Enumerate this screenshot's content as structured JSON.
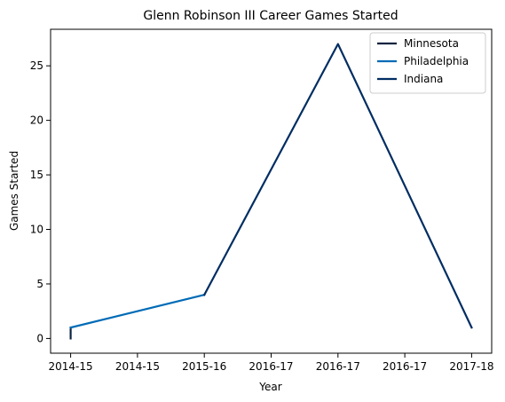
{
  "chart_data": {
    "type": "line",
    "title": "Glenn Robinson III Career Games Started",
    "xlabel": "Year",
    "ylabel": "Games Started",
    "x_tick_labels": [
      "2014-15",
      "2014-15",
      "2015-16",
      "2016-17",
      "2016-17",
      "2016-17",
      "2017-18"
    ],
    "ylim": [
      -1.35,
      28.35
    ],
    "y_ticks": [
      0,
      5,
      10,
      15,
      20,
      25
    ],
    "grid": false,
    "legend_position": "top-right",
    "series": [
      {
        "name": "Minnesota",
        "color": "#0c2340",
        "points": [
          {
            "x": 0,
            "y": 0
          },
          {
            "x": 0,
            "y": 1
          }
        ]
      },
      {
        "name": "Philadelphia",
        "color": "#006bb6",
        "points": [
          {
            "x": 0,
            "y": 1
          },
          {
            "x": 1,
            "y": 4
          }
        ]
      },
      {
        "name": "Indiana",
        "color": "#002d62",
        "points": [
          {
            "x": 1,
            "y": 4
          },
          {
            "x": 2,
            "y": 27
          },
          {
            "x": 3,
            "y": 1
          }
        ]
      }
    ]
  }
}
